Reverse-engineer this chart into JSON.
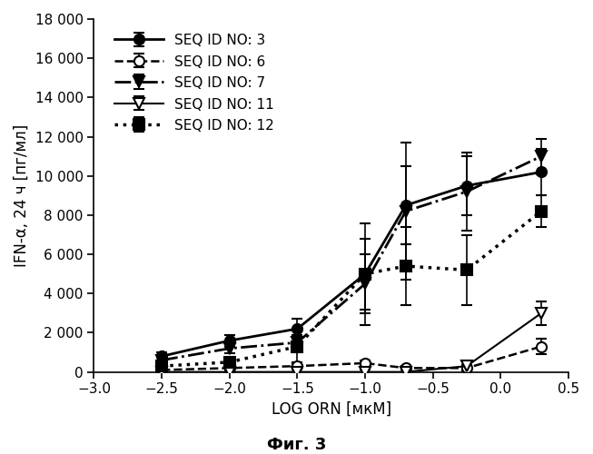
{
  "x_values": [
    -2.5,
    -2.0,
    -1.5,
    -1.0,
    -0.7,
    -0.25,
    0.3
  ],
  "series": [
    {
      "label": "SEQ ID NO: 3",
      "linestyle": "-",
      "marker": "o",
      "mfc": "black",
      "lw": 2.0,
      "ms": 8,
      "y": [
        800,
        1600,
        2200,
        5000,
        8500,
        9500,
        10200
      ],
      "yerr": [
        200,
        300,
        500,
        1800,
        2000,
        1500,
        1200
      ]
    },
    {
      "label": "SEQ ID NO: 6",
      "linestyle": "--",
      "marker": "o",
      "mfc": "white",
      "lw": 1.8,
      "ms": 8,
      "y": [
        100,
        200,
        300,
        450,
        200,
        200,
        1300
      ],
      "yerr": [
        50,
        80,
        100,
        150,
        100,
        150,
        400
      ]
    },
    {
      "label": "SEQ ID NO: 7",
      "linestyle": "-.",
      "marker": "v",
      "mfc": "black",
      "lw": 2.0,
      "ms": 9,
      "y": [
        600,
        1200,
        1500,
        4500,
        8200,
        9200,
        11000
      ],
      "yerr": [
        200,
        250,
        400,
        1500,
        3500,
        2000,
        900
      ]
    },
    {
      "label": "SEQ ID NO: 11",
      "linestyle": "-",
      "marker": "v",
      "mfc": "white",
      "lw": 1.5,
      "ms": 9,
      "y": [
        0,
        0,
        0,
        0,
        0,
        300,
        3000
      ],
      "yerr": [
        50,
        80,
        100,
        100,
        100,
        200,
        600
      ]
    },
    {
      "label": "SEQ ID NO: 12",
      "linestyle": ":",
      "marker": "s",
      "mfc": "black",
      "lw": 2.5,
      "ms": 8,
      "y": [
        300,
        500,
        1300,
        5000,
        5400,
        5200,
        8200
      ],
      "yerr": [
        100,
        200,
        800,
        2600,
        2000,
        1800,
        800
      ]
    }
  ],
  "xlim": [
    -3.0,
    0.5
  ],
  "ylim": [
    0,
    18000
  ],
  "xticks": [
    -3.0,
    -2.5,
    -2.0,
    -1.5,
    -1.0,
    -0.5,
    0.0,
    0.5
  ],
  "yticks": [
    0,
    2000,
    4000,
    6000,
    8000,
    10000,
    12000,
    14000,
    16000,
    18000
  ],
  "xlabel": "LOG ORN [мкМ]",
  "ylabel": "IFN-α, 24 ч [пг/мл]",
  "caption": "Фиг. 3",
  "axis_fontsize": 12,
  "tick_fontsize": 11,
  "legend_fontsize": 11,
  "caption_fontsize": 13
}
